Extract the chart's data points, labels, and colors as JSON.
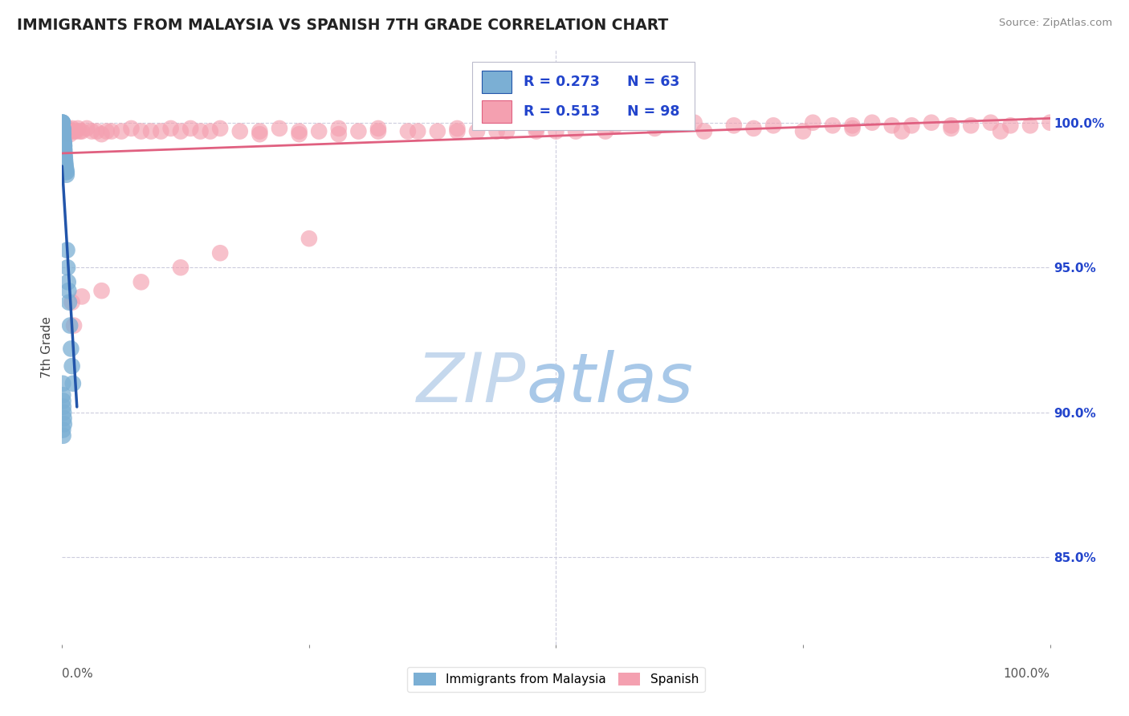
{
  "title": "IMMIGRANTS FROM MALAYSIA VS SPANISH 7TH GRADE CORRELATION CHART",
  "source_text": "Source: ZipAtlas.com",
  "ylabel": "7th Grade",
  "right_ytick_labels": [
    "85.0%",
    "90.0%",
    "95.0%",
    "100.0%"
  ],
  "right_ytick_values": [
    0.85,
    0.9,
    0.95,
    1.0
  ],
  "legend_r1": "R = 0.273",
  "legend_n1": "N = 63",
  "legend_r2": "R = 0.513",
  "legend_n2": "N = 98",
  "color_blue": "#7BAFD4",
  "color_pink": "#F4A0B0",
  "color_blue_dark": "#2255AA",
  "color_pink_dark": "#E06080",
  "color_r_text": "#2244CC",
  "watermark_zip": "ZIP",
  "watermark_atlas": "atlas",
  "watermark_color_zip": "#C5D8ED",
  "watermark_color_atlas": "#A8C8E8",
  "xlim": [
    0.0,
    1.0
  ],
  "ylim": [
    0.82,
    1.025
  ],
  "grid_color": "#CCCCDD",
  "background_color": "#FFFFFF",
  "blue_scatter_x": [
    0.0003,
    0.0003,
    0.0005,
    0.0005,
    0.0005,
    0.0005,
    0.0005,
    0.0008,
    0.0008,
    0.0008,
    0.001,
    0.001,
    0.001,
    0.001,
    0.001,
    0.001,
    0.001,
    0.0012,
    0.0012,
    0.0012,
    0.0015,
    0.0015,
    0.0015,
    0.0015,
    0.0018,
    0.0018,
    0.002,
    0.002,
    0.002,
    0.0022,
    0.0022,
    0.0025,
    0.0025,
    0.0025,
    0.0028,
    0.003,
    0.003,
    0.0032,
    0.0032,
    0.0035,
    0.0035,
    0.004,
    0.004,
    0.0045,
    0.0045,
    0.005,
    0.0055,
    0.006,
    0.0065,
    0.007,
    0.008,
    0.009,
    0.01,
    0.011,
    0.0008,
    0.0008,
    0.001,
    0.0012,
    0.0015,
    0.0018,
    0.002,
    0.0008,
    0.001
  ],
  "blue_scatter_y": [
    1.0,
    1.0,
    1.0,
    1.0,
    0.998,
    0.998,
    0.997,
    0.998,
    0.997,
    0.996,
    0.998,
    0.997,
    0.996,
    0.995,
    0.994,
    0.993,
    0.992,
    0.996,
    0.995,
    0.993,
    0.994,
    0.993,
    0.992,
    0.991,
    0.993,
    0.992,
    0.993,
    0.992,
    0.991,
    0.992,
    0.991,
    0.99,
    0.989,
    0.988,
    0.988,
    0.987,
    0.986,
    0.986,
    0.985,
    0.985,
    0.984,
    0.984,
    0.983,
    0.983,
    0.982,
    0.956,
    0.95,
    0.945,
    0.942,
    0.938,
    0.93,
    0.922,
    0.916,
    0.91,
    0.91,
    0.906,
    0.904,
    0.902,
    0.9,
    0.898,
    0.896,
    0.894,
    0.892
  ],
  "pink_scatter_x": [
    0.0005,
    0.0008,
    0.001,
    0.0012,
    0.0015,
    0.0018,
    0.002,
    0.0025,
    0.003,
    0.0035,
    0.004,
    0.005,
    0.006,
    0.007,
    0.008,
    0.009,
    0.01,
    0.012,
    0.014,
    0.016,
    0.018,
    0.02,
    0.025,
    0.03,
    0.035,
    0.04,
    0.045,
    0.05,
    0.06,
    0.07,
    0.08,
    0.09,
    0.1,
    0.11,
    0.12,
    0.13,
    0.14,
    0.15,
    0.16,
    0.18,
    0.2,
    0.22,
    0.24,
    0.26,
    0.28,
    0.3,
    0.32,
    0.35,
    0.38,
    0.4,
    0.42,
    0.45,
    0.48,
    0.5,
    0.55,
    0.6,
    0.65,
    0.7,
    0.75,
    0.8,
    0.85,
    0.9,
    0.95,
    1.0,
    0.98,
    0.96,
    0.94,
    0.92,
    0.9,
    0.88,
    0.86,
    0.84,
    0.82,
    0.8,
    0.78,
    0.76,
    0.72,
    0.68,
    0.64,
    0.6,
    0.56,
    0.52,
    0.48,
    0.44,
    0.4,
    0.36,
    0.32,
    0.28,
    0.24,
    0.2,
    0.16,
    0.12,
    0.08,
    0.04,
    0.02,
    0.01,
    0.012,
    0.25
  ],
  "pink_scatter_y": [
    0.998,
    0.997,
    0.998,
    0.997,
    0.997,
    0.998,
    0.997,
    0.998,
    0.997,
    0.996,
    0.997,
    0.997,
    0.998,
    0.997,
    0.996,
    0.997,
    0.998,
    0.997,
    0.997,
    0.998,
    0.997,
    0.997,
    0.998,
    0.997,
    0.997,
    0.996,
    0.997,
    0.997,
    0.997,
    0.998,
    0.997,
    0.997,
    0.997,
    0.998,
    0.997,
    0.998,
    0.997,
    0.997,
    0.998,
    0.997,
    0.997,
    0.998,
    0.997,
    0.997,
    0.998,
    0.997,
    0.998,
    0.997,
    0.997,
    0.998,
    0.997,
    0.997,
    0.998,
    0.997,
    0.997,
    0.998,
    0.997,
    0.998,
    0.997,
    0.998,
    0.997,
    0.998,
    0.997,
    1.0,
    0.999,
    0.999,
    1.0,
    0.999,
    0.999,
    1.0,
    0.999,
    0.999,
    1.0,
    0.999,
    0.999,
    1.0,
    0.999,
    0.999,
    1.0,
    0.999,
    0.999,
    0.997,
    0.997,
    0.997,
    0.997,
    0.997,
    0.997,
    0.996,
    0.996,
    0.996,
    0.955,
    0.95,
    0.945,
    0.942,
    0.94,
    0.938,
    0.93,
    0.96
  ]
}
